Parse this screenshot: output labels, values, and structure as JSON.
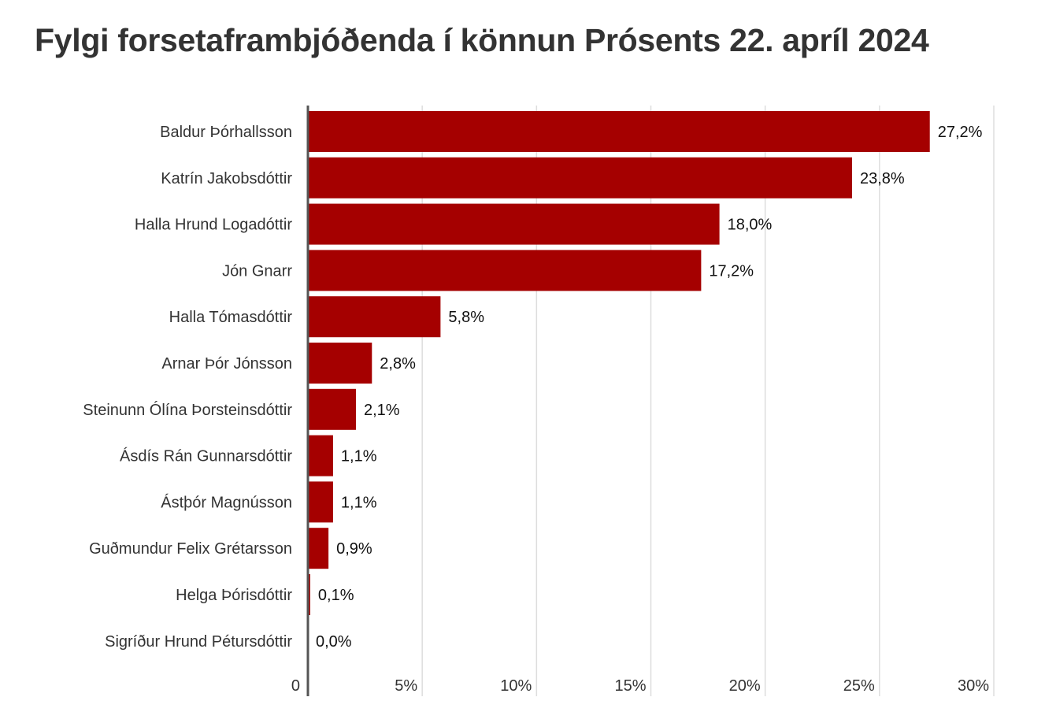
{
  "chart_data": {
    "type": "bar",
    "orientation": "horizontal",
    "title": "Fylgi forsetaframbjóðenda í könnun Prósents 22. apríl 2024",
    "categories": [
      "Baldur Þórhallsson",
      "Katrín Jakobsdóttir",
      "Halla Hrund Logadóttir",
      "Jón Gnarr",
      "Halla Tómasdóttir",
      "Arnar Þór Jónsson",
      "Steinunn Ólína Þorsteinsdóttir",
      "Ásdís Rán Gunnarsdóttir",
      "Ástþór Magnússon",
      "Guðmundur Felix Grétarsson",
      "Helga Þórisdóttir",
      "Sigríður Hrund Pétursdóttir"
    ],
    "values": [
      27.2,
      23.8,
      18.0,
      17.2,
      5.8,
      2.8,
      2.1,
      1.1,
      1.1,
      0.9,
      0.1,
      0.0
    ],
    "value_labels": [
      "27,2%",
      "23,8%",
      "18,0%",
      "17,2%",
      "5,8%",
      "2,8%",
      "2,1%",
      "1,1%",
      "1,1%",
      "0,9%",
      "0,1%",
      "0,0%"
    ],
    "xlim": [
      0,
      30
    ],
    "x_ticks": [
      0,
      5,
      10,
      15,
      20,
      25,
      30
    ],
    "x_tick_labels": [
      "0",
      "5%",
      "10%",
      "15%",
      "20%",
      "25%",
      "30%"
    ],
    "xlabel": "",
    "ylabel": "",
    "grid": true,
    "legend": "none",
    "bar_color": "#a50000",
    "grid_color": "#dddddd",
    "axis_color": "#555555"
  }
}
